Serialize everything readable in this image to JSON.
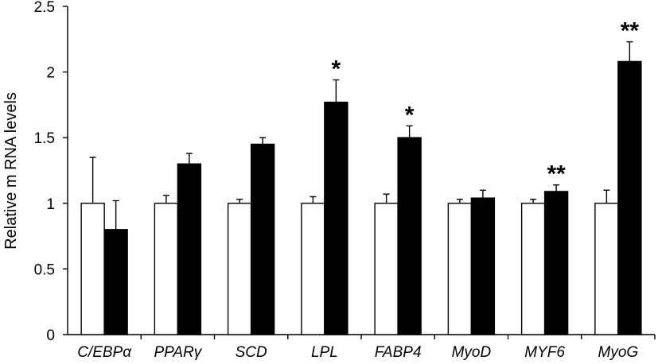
{
  "chart_data": {
    "type": "bar",
    "title": "",
    "xlabel": "",
    "ylabel": "Relative m RNA levels",
    "ylim": [
      0,
      2.5
    ],
    "yticks": [
      "0",
      "0.5",
      "1",
      "1.5",
      "2",
      "2.5"
    ],
    "grid": false,
    "legend": "none",
    "categories": [
      "C/EBPα",
      "PPARγ",
      "SCD",
      "LPL",
      "FABP4",
      "MyoD",
      "MYF6",
      "MyoG"
    ],
    "series": [
      {
        "fill": "#ffffff",
        "values": [
          1.0,
          1.0,
          1.0,
          1.0,
          1.0,
          1.0,
          1.0,
          1.0
        ],
        "errors": [
          0.35,
          0.06,
          0.03,
          0.05,
          0.07,
          0.03,
          0.03,
          0.1
        ]
      },
      {
        "fill": "#000000",
        "values": [
          0.8,
          1.3,
          1.45,
          1.77,
          1.5,
          1.04,
          1.09,
          2.08
        ],
        "errors": [
          0.22,
          0.08,
          0.05,
          0.17,
          0.09,
          0.06,
          0.05,
          0.15
        ]
      }
    ],
    "significance": [
      "",
      "",
      "",
      "*",
      "*",
      "",
      "**",
      "**"
    ]
  }
}
